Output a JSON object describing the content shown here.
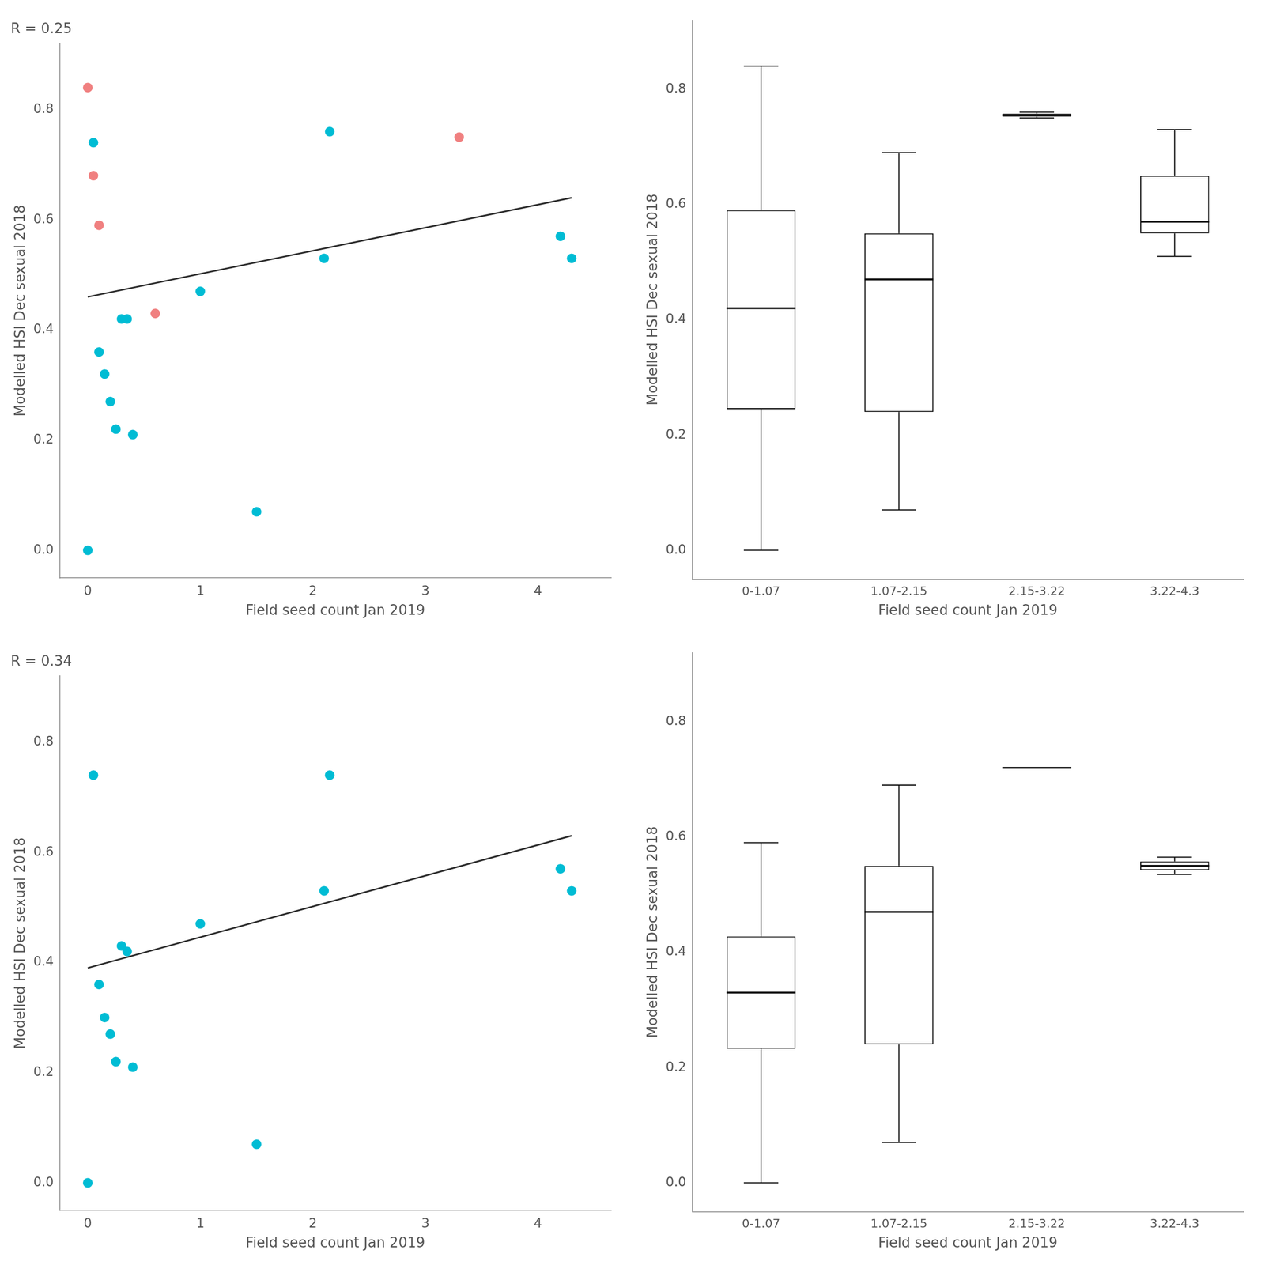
{
  "chart_data": [
    {
      "type": "scatter",
      "xlabel": "Field seed count Jan 2019",
      "ylabel": "Modelled HSI Dec sexual 2018",
      "annotation": "R = 0.25",
      "xlim": [
        -0.25,
        4.65
      ],
      "xticks": [
        0,
        1,
        2,
        3,
        4
      ],
      "ylim": [
        -0.05,
        0.92
      ],
      "yticks": [
        {
          "value": 0,
          "label": "0.0"
        },
        0.2,
        0.4,
        0.6,
        0.8
      ],
      "grid": false,
      "series": [
        {
          "color": "#00BCD4",
          "marker": "circle",
          "x": [
            0.0,
            0.05,
            0.1,
            0.15,
            0.2,
            0.25,
            0.3,
            0.35,
            0.4,
            1.0,
            1.5,
            2.1,
            2.15,
            4.2,
            4.3
          ],
          "values": [
            0.0,
            0.74,
            0.36,
            0.32,
            0.27,
            0.22,
            0.42,
            0.42,
            0.21,
            0.47,
            0.07,
            0.53,
            0.76,
            0.57,
            0.53
          ]
        },
        {
          "color": "#F08080",
          "marker": "circle",
          "x": [
            0.0,
            0.05,
            0.1,
            0.6,
            3.3
          ],
          "values": [
            0.84,
            0.68,
            0.59,
            0.43,
            0.75
          ]
        },
        {
          "type": "line",
          "color": "#2d2d2d",
          "line_style": "solid",
          "x": [
            0.0,
            4.3
          ],
          "values": [
            0.46,
            0.64
          ]
        }
      ]
    },
    {
      "type": "box",
      "xlabel": "Field seed count Jan 2019",
      "ylabel": "Modelled HSI Dec sexual 2018",
      "categories": [
        "0-1.07",
        "1.07-2.15",
        "2.15-3.22",
        "3.22-4.3"
      ],
      "boxes": [
        {
          "whisker_low": 0.0,
          "q1": 0.245,
          "median": 0.42,
          "q3": 0.59,
          "whisker_high": 0.84
        },
        {
          "whisker_low": 0.07,
          "q1": 0.24,
          "median": 0.47,
          "q3": 0.55,
          "whisker_high": 0.69
        },
        {
          "whisker_low": 0.75,
          "q1": 0.7525,
          "median": 0.755,
          "q3": 0.7575,
          "whisker_high": 0.76
        },
        {
          "whisker_low": 0.51,
          "q1": 0.55,
          "median": 0.57,
          "q3": 0.65,
          "whisker_high": 0.73
        }
      ],
      "ylim": [
        -0.05,
        0.92
      ],
      "yticks": [
        {
          "value": 0,
          "label": "0.0"
        },
        0.2,
        0.4,
        0.6,
        0.8
      ],
      "grid": false
    },
    {
      "type": "scatter",
      "xlabel": "Field seed count Jan 2019",
      "ylabel": "Modelled HSI Dec sexual 2018",
      "annotation": "R = 0.34",
      "xlim": [
        -0.25,
        4.65
      ],
      "xticks": [
        0,
        1,
        2,
        3,
        4
      ],
      "ylim": [
        -0.05,
        0.92
      ],
      "yticks": [
        {
          "value": 0,
          "label": "0.0"
        },
        0.2,
        0.4,
        0.6,
        0.8
      ],
      "grid": false,
      "series": [
        {
          "color": "#00BCD4",
          "marker": "circle",
          "x": [
            0.0,
            0.05,
            0.1,
            0.15,
            0.2,
            0.25,
            0.3,
            0.35,
            0.4,
            1.0,
            1.5,
            2.1,
            2.15,
            4.2,
            4.3
          ],
          "values": [
            0.0,
            0.74,
            0.36,
            0.3,
            0.27,
            0.22,
            0.43,
            0.42,
            0.21,
            0.47,
            0.07,
            0.53,
            0.74,
            0.57,
            0.53
          ]
        },
        {
          "type": "line",
          "color": "#2d2d2d",
          "line_style": "solid",
          "x": [
            0.0,
            4.3
          ],
          "values": [
            0.39,
            0.63
          ]
        }
      ]
    },
    {
      "type": "box",
      "xlabel": "Field seed count Jan 2019",
      "ylabel": "Modelled HSI Dec sexual 2018",
      "categories": [
        "0-1.07",
        "1.07-2.15",
        "2.15-3.22",
        "3.22-4.3"
      ],
      "boxes": [
        {
          "whisker_low": 0.0,
          "q1": 0.2325,
          "median": 0.33,
          "q3": 0.4275,
          "whisker_high": 0.59
        },
        {
          "whisker_low": 0.07,
          "q1": 0.24,
          "median": 0.47,
          "q3": 0.55,
          "whisker_high": 0.69
        },
        {
          "whisker_low": 0.72,
          "q1": 0.72,
          "median": 0.72,
          "q3": 0.72,
          "whisker_high": 0.72
        },
        {
          "whisker_low": 0.535,
          "q1": 0.5425,
          "median": 0.55,
          "q3": 0.5575,
          "whisker_high": 0.565
        }
      ],
      "ylim": [
        -0.05,
        0.92
      ],
      "yticks": [
        {
          "value": 0,
          "label": "0.0"
        },
        0.2,
        0.4,
        0.6,
        0.8
      ],
      "grid": false
    }
  ]
}
